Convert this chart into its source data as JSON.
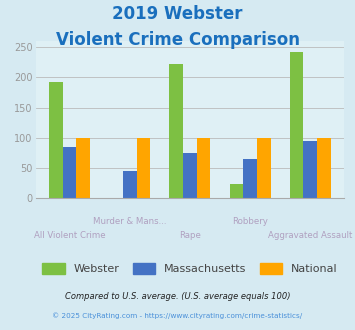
{
  "title_line1": "2019 Webster",
  "title_line2": "Violent Crime Comparison",
  "categories": [
    "All Violent Crime",
    "Murder & Mans...",
    "Rape",
    "Robbery",
    "Aggravated Assault"
  ],
  "series": {
    "Webster": [
      192,
      0,
      222,
      23,
      242
    ],
    "Massachusetts": [
      85,
      45,
      75,
      64,
      95
    ],
    "National": [
      100,
      100,
      100,
      100,
      100
    ]
  },
  "colors": {
    "Webster": "#7dc043",
    "Massachusetts": "#4472c4",
    "National": "#ffa500"
  },
  "ylim": [
    0,
    260
  ],
  "yticks": [
    0,
    50,
    100,
    150,
    200,
    250
  ],
  "bg_color": "#d6eaf2",
  "plot_bg": "#dff0f5",
  "title_color": "#1a6fbd",
  "footnote1": "Compared to U.S. average. (U.S. average equals 100)",
  "footnote2": "© 2025 CityRating.com - https://www.cityrating.com/crime-statistics/",
  "footnote1_color": "#222222",
  "footnote2_color": "#4a90d9",
  "legend_labels": [
    "Webster",
    "Massachusetts",
    "National"
  ],
  "tick_label_color": "#b0a0c0",
  "tick_label_top": [
    "",
    "Murder & Mans...",
    "",
    "Robbery",
    ""
  ],
  "tick_label_bot": [
    "All Violent Crime",
    "",
    "Rape",
    "",
    "Aggravated Assault"
  ]
}
